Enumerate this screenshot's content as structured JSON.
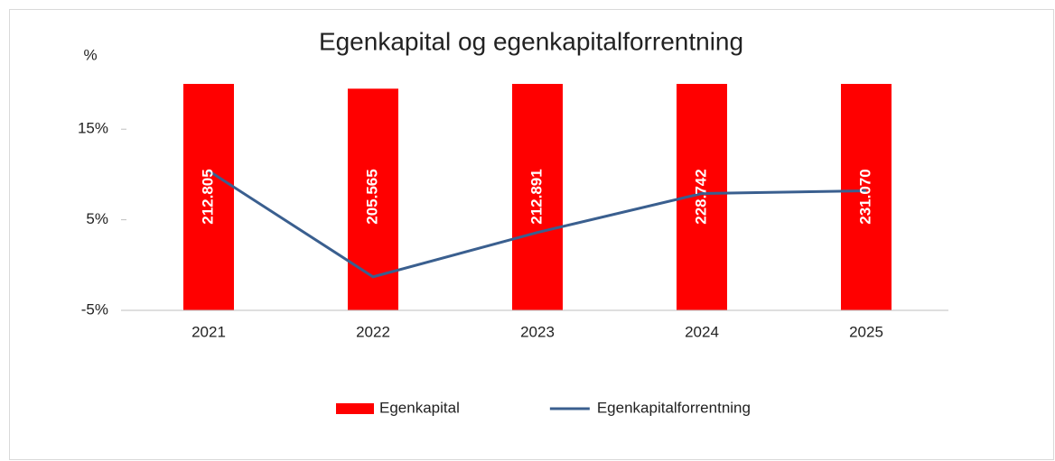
{
  "chart_data": {
    "type": "bar_line",
    "title": "Egenkapital og egenkapitalforrentning",
    "y_axis_label": "%",
    "categories": [
      "2021",
      "2022",
      "2023",
      "2024",
      "2025"
    ],
    "series": [
      {
        "name": "Egenkapital",
        "type": "bar",
        "axis": "y2",
        "color": "#ff0000",
        "values": [
          212805,
          205565,
          212891,
          228742,
          231070
        ],
        "value_labels": [
          "212.805",
          "205.565",
          "212.891",
          "228.742",
          "231.070"
        ]
      },
      {
        "name": "Egenkapitalforrentning",
        "type": "line",
        "color": "#3a5f8f",
        "values": [
          10.4,
          -1.3,
          3.6,
          7.9,
          8.2
        ]
      }
    ],
    "ylim": [
      -5,
      20
    ],
    "yticks": [
      {
        "value": -5,
        "label": "-5%"
      },
      {
        "value": 5,
        "label": "5%"
      },
      {
        "value": 15,
        "label": "15%"
      }
    ],
    "y2lim": [
      0,
      210000
    ],
    "legend": "bottom"
  }
}
